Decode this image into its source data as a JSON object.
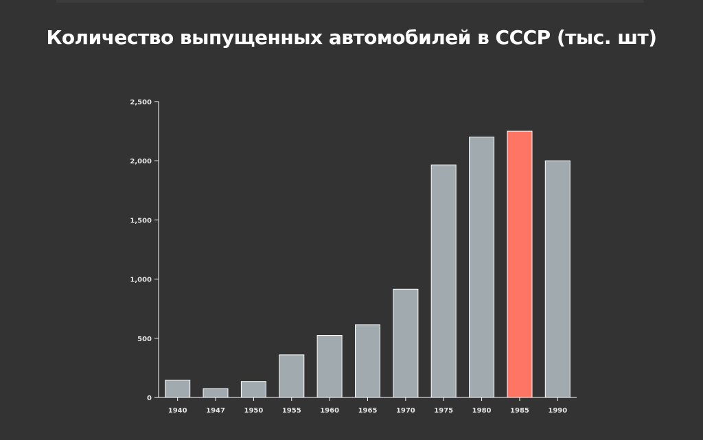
{
  "title": "Количество выпущенных автомобилей в СССР (тыс. шт)",
  "colors": {
    "background": "#333333",
    "bar": "#a0aaaf",
    "bar_highlight": "#ff7563",
    "bar_stroke": "#ffffff",
    "axis": "#ffffff",
    "text": "#ffffff"
  },
  "chart_data": {
    "type": "bar",
    "categories": [
      "1940",
      "1947",
      "1950",
      "1955",
      "1960",
      "1965",
      "1970",
      "1975",
      "1980",
      "1985",
      "1990"
    ],
    "values": [
      145,
      75,
      135,
      360,
      525,
      615,
      915,
      1965,
      2200,
      2250,
      2000
    ],
    "highlight_index": 9,
    "title": "Количество выпущенных автомобилей в СССР (тыс. шт)",
    "xlabel": "",
    "ylabel": "",
    "ylim": [
      0,
      2500
    ],
    "yticks": [
      0,
      500,
      1000,
      1500,
      2000,
      2500
    ],
    "ytick_labels": [
      "0",
      "500",
      "1,000",
      "1,500",
      "2,000",
      "2,500"
    ],
    "grid": false,
    "legend": "none"
  }
}
